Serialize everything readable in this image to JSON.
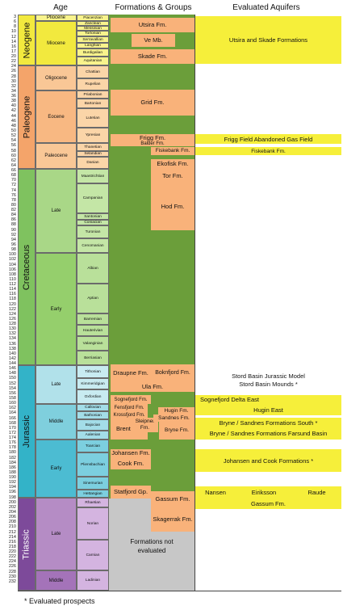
{
  "headers": {
    "age": "Age",
    "formations": "Formations & Groups",
    "aquifers": "Evaluated Aquifers"
  },
  "footnote": "* Evaluated prospects",
  "ticks": [
    "3",
    "6",
    "8",
    "10",
    "12",
    "14",
    "16",
    "17",
    "20",
    "22",
    "24",
    "26",
    "28",
    "30",
    "32",
    "34",
    "36",
    "38",
    "40",
    "42",
    "44",
    "46",
    "48",
    "50",
    "52",
    "54",
    "56",
    "58",
    "60",
    "62",
    "64",
    "66",
    "68",
    "70",
    "72",
    "74",
    "76",
    "78",
    "80",
    "82",
    "84",
    "86",
    "88",
    "90",
    "92",
    "94",
    "96",
    "98",
    "100",
    "102",
    "104",
    "106",
    "108",
    "110",
    "112",
    "114",
    "116",
    "118",
    "120",
    "122",
    "124",
    "126",
    "128",
    "130",
    "132",
    "134",
    "136",
    "138",
    "140",
    "142",
    "144",
    "146",
    "148",
    "150",
    "152",
    "154",
    "156",
    "158",
    "160",
    "162",
    "164",
    "166",
    "168",
    "170",
    "172",
    "174",
    "176",
    "178",
    "180",
    "182",
    "184",
    "186",
    "188",
    "190",
    "192",
    "194",
    "196",
    "198",
    "200",
    "202",
    "204",
    "206",
    "208",
    "210",
    "212",
    "214",
    "216",
    "218",
    "220",
    "222",
    "224",
    "226",
    "228",
    "230",
    "232"
  ],
  "eras": [
    {
      "name": "Neogene",
      "color": "#f2e93e"
    },
    {
      "name": "Paleogene",
      "color": "#f4a46a"
    },
    {
      "name": "Cretaceous",
      "color": "#7fc25f"
    },
    {
      "name": "Jurassic",
      "color": "#33b3c8"
    },
    {
      "name": "Triassic",
      "color": "#7d4a9a"
    }
  ],
  "epochs": [
    {
      "name": "Pliocene",
      "color": "#f8f38c"
    },
    {
      "name": "Miocene",
      "color": "#f2e93e"
    },
    {
      "name": "Oligocene",
      "color": "#f9c796"
    },
    {
      "name": "Eocene",
      "color": "#f8b882"
    },
    {
      "name": "Paleocene",
      "color": "#f9c796"
    },
    {
      "name": "Late",
      "color": "#a9d787"
    },
    {
      "name": "Early",
      "color": "#95cf6c"
    },
    {
      "name": "Late",
      "color": "#b1e1ea"
    },
    {
      "name": "Middle",
      "color": "#7fcfdd"
    },
    {
      "name": "Early",
      "color": "#4cbcd2"
    },
    {
      "name": "Late",
      "color": "#b58cc5"
    },
    {
      "name": "Middle",
      "color": "#a473b9"
    }
  ],
  "stages": [
    "Piacenzian",
    "Zanclean",
    "Messinian",
    "Tortonian",
    "Serravallian",
    "Langhian",
    "Burdigalian",
    "Aquitanian",
    "Chattian",
    "Rupelian",
    "Priabonian",
    "Bartonian",
    "Lutetian",
    "Ypresian",
    "Thanetian",
    "Selandian",
    "Danian",
    "Maastrichtian",
    "Campanian",
    "Santonian",
    "Coniacian",
    "Turonian",
    "Cenomanian",
    "Albian",
    "Aptian",
    "Barremian",
    "Hauterivian",
    "Valanginian",
    "Berriasian",
    "Tithonian",
    "Kimmeridgian",
    "Oxfordian",
    "Callovian",
    "Bathonian",
    "Bajocian",
    "Aalenian",
    "Toarcian",
    "Pliensbachian",
    "Sinemurian",
    "Hettangian",
    "Rhaetian",
    "Norian",
    "Carnian",
    "Ladinian"
  ],
  "stage_colors": {
    "neogene": "#f8f38c",
    "paleogene": "#fbd5a8",
    "cret_late": "#c4e6a6",
    "cret_early": "#b9e09a",
    "jur_late": "#c8ebf1",
    "jur_mid": "#a3dde8",
    "jur_early": "#7ccfdf",
    "tri": "#d4b4e0"
  },
  "formations": {
    "utsira": "Utsira Fm.",
    "ve": "Ve Mb.",
    "skade": "Skade Fm.",
    "grid": "Grid Fm.",
    "frigg": "Frigg Fm.",
    "balder": "Balder Fm.",
    "fiskebank": "Fiskebank Fm.",
    "ekofisk": "Ekofisk Fm.",
    "tor": "Tor Fm.",
    "hod": "Hod Fm.",
    "draupne": "Draupne Fm.",
    "boknfjord": "Boknfjord Fm.",
    "ula": "Ula Fm.",
    "sognefjord": "Sognefjord Fm.",
    "fensfjord": "Fensfjord Fm.",
    "krossfjord": "Krossfjord Fm.",
    "hugin": "Hugin Fm.",
    "sandnes": "Sandnes Fm.",
    "sleipner": "Sleipner Fm.",
    "bryne": "Bryne Fm.",
    "brent": "Brent Gp.",
    "johansen": "Johansen Fm.",
    "cook": "Cook Fm.",
    "statfjord": "Statfjord Gp.",
    "gassum": "Gassum Fm.",
    "skagerrak": "Skagerrak Fm.",
    "not_evaluated": "Formations not evaluated"
  },
  "aquifers": {
    "utsira_skade": "Utsira and Skade Formations",
    "frigg_field": "Frigg Field Abandoned Gas Field",
    "fiskebank": "Fiskebank Fm.",
    "stord_model": "Stord Basin Jurassic Model",
    "stord_mounds": "Stord Basin Mounds  *",
    "sognefjord_delta": "Sognefjord Delta East",
    "hugin_east": "Hugin East",
    "bryne_south": "Bryne / Sandnes Formations South  *",
    "bryne_farsund": "Bryne / Sandnes Formations Farsund Basin",
    "johansen_cook": "Johansen and Cook Formations  *",
    "nansen": "Nansen",
    "eiriksson": "Eiriksson",
    "raude": "Raude",
    "gassum": "Gassum Fm."
  },
  "colors": {
    "formation_green": "#6b9e3a",
    "formation_orange": "#f9b27a",
    "not_evaluated_gray": "#c7c7c7",
    "aquifer_yellow": "#f6ef3a"
  }
}
